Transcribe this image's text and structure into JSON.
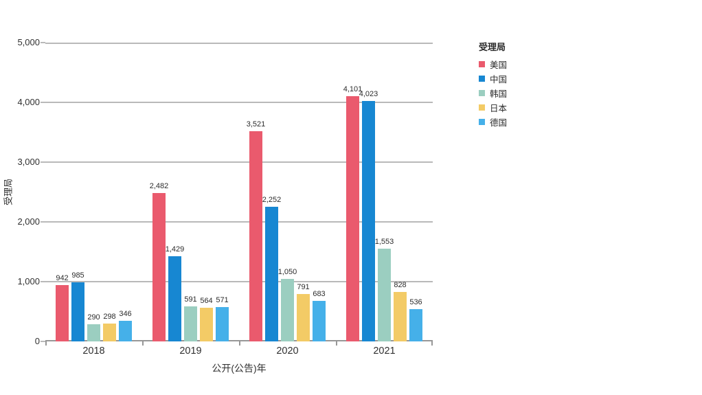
{
  "chart_data": {
    "type": "bar",
    "categories": [
      "2018",
      "2019",
      "2020",
      "2021"
    ],
    "series": [
      {
        "name": "美国",
        "color": "#EA5A6D",
        "values": [
          942,
          2482,
          3521,
          4101
        ]
      },
      {
        "name": "中国",
        "color": "#1787D2",
        "values": [
          985,
          1429,
          2252,
          4023
        ]
      },
      {
        "name": "韩国",
        "color": "#9BCEC0",
        "values": [
          290,
          591,
          1050,
          1553
        ]
      },
      {
        "name": "日本",
        "color": "#F3CB66",
        "values": [
          298,
          564,
          791,
          828
        ]
      },
      {
        "name": "德国",
        "color": "#45B0E9",
        "values": [
          346,
          571,
          683,
          536
        ]
      }
    ],
    "title": "",
    "xlabel": "公开(公告)年",
    "ylabel": "受理局",
    "ylim": [
      0,
      5000
    ],
    "y_ticks": [
      0,
      1000,
      2000,
      3000,
      4000,
      5000
    ],
    "y_tick_labels": [
      "0",
      "1,000",
      "2,000",
      "3,000",
      "4,000",
      "5,000"
    ],
    "legend_title": "受理局",
    "legend_position": "top-right",
    "grid": true,
    "data_labels": true,
    "label_format": "thousands-comma"
  },
  "colors": {
    "background": "#FFFFFF",
    "gridline": "#B9B9B9",
    "axis": "#979797",
    "text": "#2E2E2E"
  }
}
